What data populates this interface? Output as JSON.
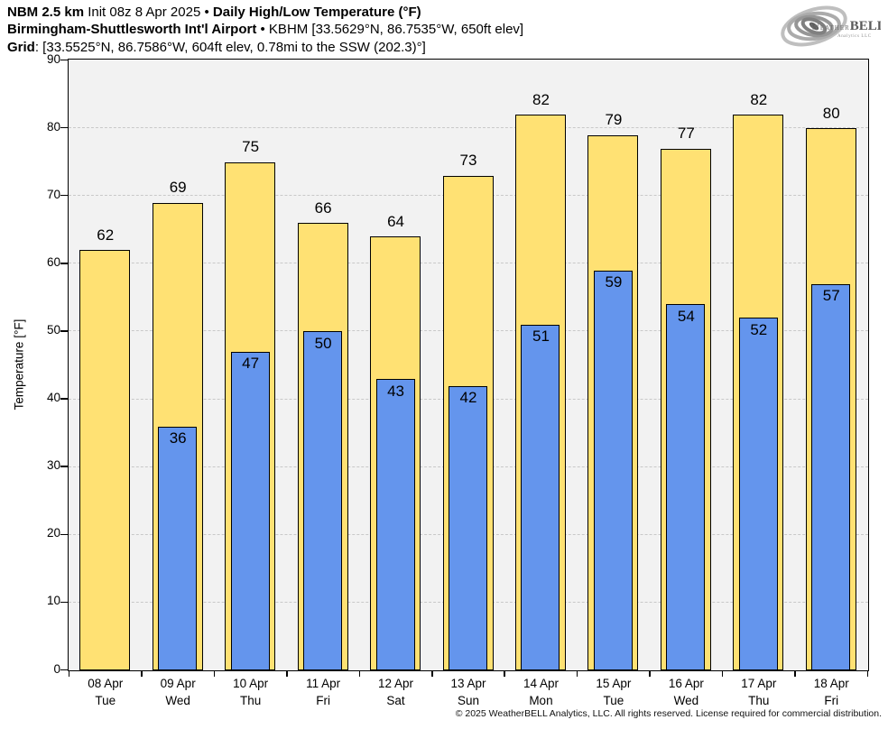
{
  "header": {
    "line1": {
      "model": "NBM 2.5 km",
      "init": " Init 08z 8 Apr 2025 • ",
      "product": "Daily High/Low Temperature (°F)"
    },
    "line2": {
      "airport": "Birmingham-Shuttlesworth Int'l Airport",
      "station": " • KBHM [33.5629°N, 86.7535°W, 650ft elev]"
    },
    "line3": {
      "label": "Grid",
      "details": ": [33.5525°N, 86.7586°W, 604ft elev, 0.78mi to the SSW (202.3)°]"
    }
  },
  "logo": {
    "word1": "Weather",
    "word2": "BELL",
    "subtext": "Analytics LLC"
  },
  "footer": {
    "copyright": "© 2025 WeatherBELL Analytics, LLC. All rights reserved. License required for commercial distribution."
  },
  "chart_data": {
    "type": "bar",
    "title": "Daily High/Low Temperature (°F)",
    "ylabel": "Temperature [°F]",
    "ylim": [
      0,
      90
    ],
    "yticks": [
      0,
      10,
      20,
      30,
      40,
      50,
      60,
      70,
      80,
      90
    ],
    "grid": true,
    "categories": [
      "08 Apr",
      "09 Apr",
      "10 Apr",
      "11 Apr",
      "12 Apr",
      "13 Apr",
      "14 Apr",
      "15 Apr",
      "16 Apr",
      "17 Apr",
      "18 Apr"
    ],
    "weekdays": [
      "Tue",
      "Wed",
      "Thu",
      "Fri",
      "Sat",
      "Sun",
      "Mon",
      "Tue",
      "Wed",
      "Thu",
      "Fri"
    ],
    "series": [
      {
        "name": "High",
        "color": "#FFE173",
        "values": [
          62,
          69,
          75,
          66,
          64,
          73,
          82,
          79,
          77,
          82,
          80
        ]
      },
      {
        "name": "Low",
        "color": "#6495ED",
        "values": [
          null,
          36,
          47,
          50,
          43,
          42,
          51,
          59,
          54,
          52,
          57
        ]
      }
    ]
  },
  "colors": {
    "high_fill": "#FFE173",
    "low_fill": "#6495ED",
    "bar_border": "#000000",
    "plot_bg": "#f2f2f2",
    "gridline": "#c9c9c9"
  }
}
